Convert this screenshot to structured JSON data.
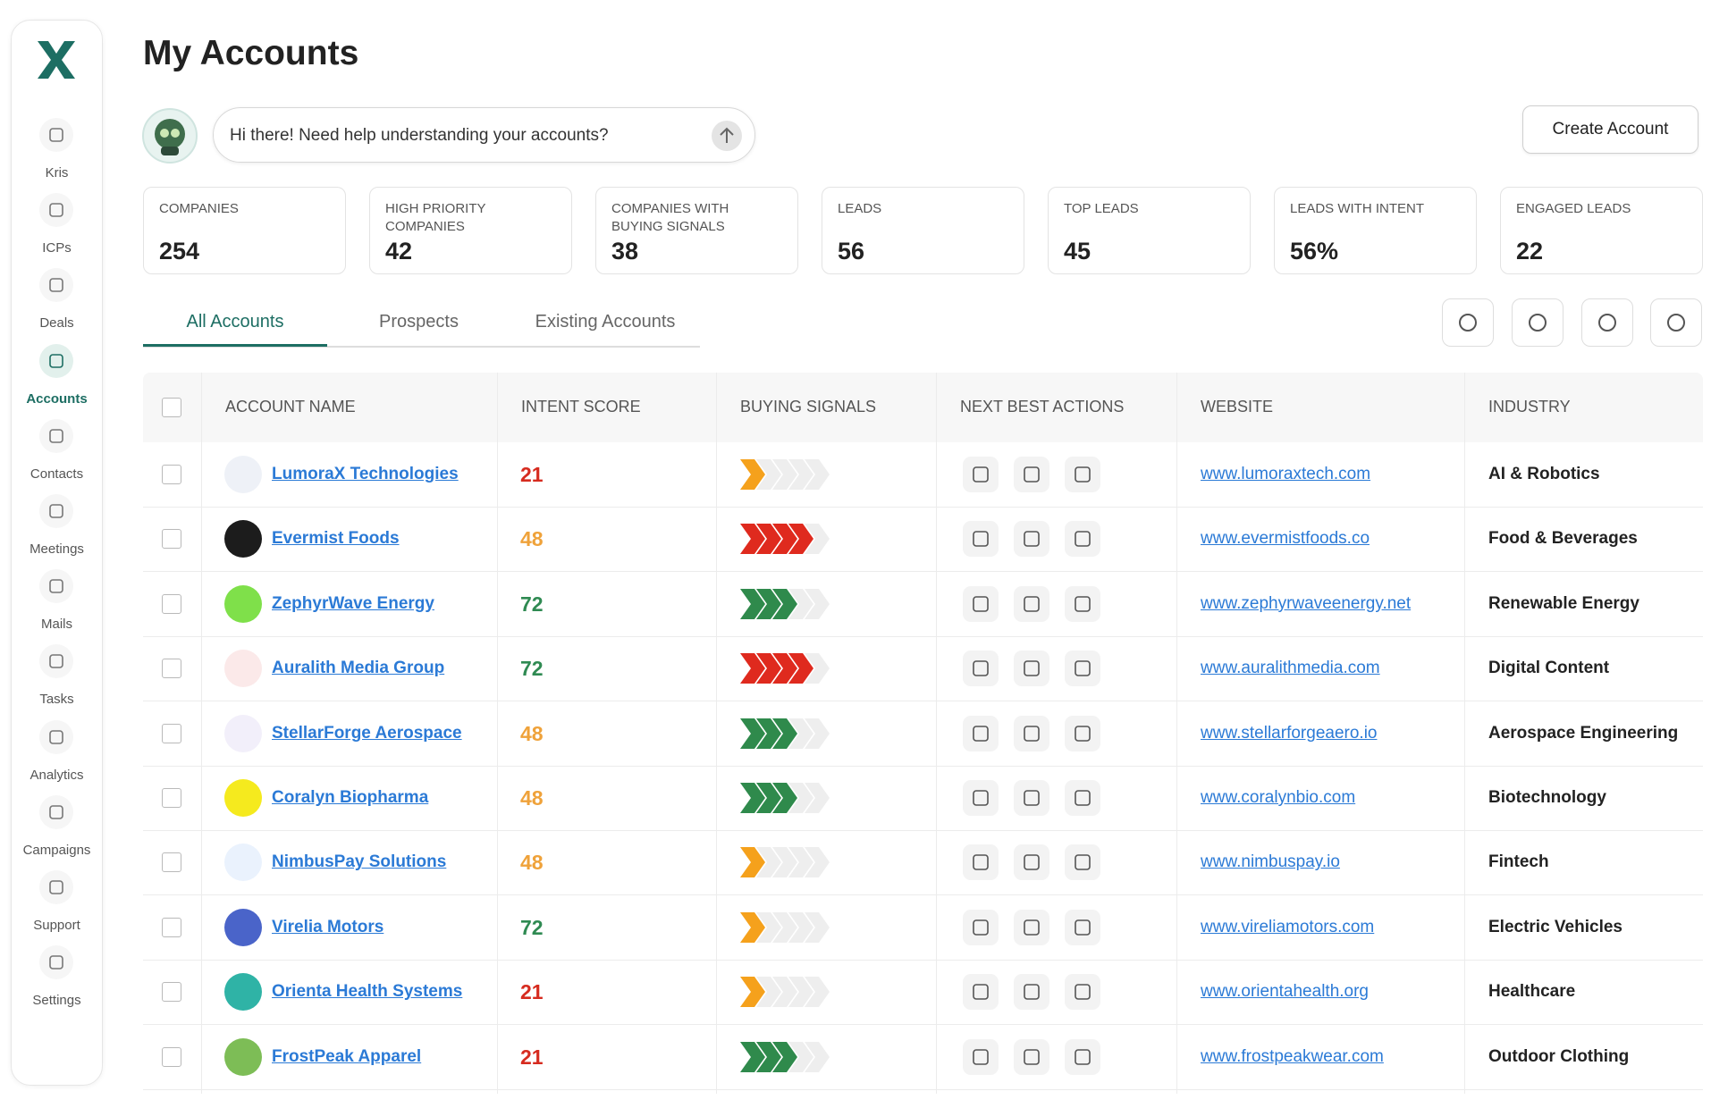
{
  "sidebar": {
    "items": [
      "Kris",
      "ICPs",
      "Deals",
      "Accounts",
      "Contacts",
      "Meetings",
      "Mails",
      "Tasks",
      "Analytics",
      "Campaigns",
      "Support",
      "Settings"
    ],
    "active_index": 3
  },
  "header": {
    "title": "My Accounts",
    "chat_placeholder": "Hi there! Need help understanding your accounts?",
    "create_button": "Create Account"
  },
  "stats": [
    {
      "label": "COMPANIES",
      "value": 254
    },
    {
      "label": "HIGH PRIORITY COMPANIES",
      "value": 42
    },
    {
      "label": "COMPANIES WITH BUYING SIGNALS",
      "value": 38
    },
    {
      "label": "LEADS",
      "value": 56
    },
    {
      "label": "TOP LEADS",
      "value": 45
    },
    {
      "label": "LEADS WITH INTENT",
      "value": "56%"
    },
    {
      "label": "ENGAGED LEADS",
      "value": 22
    }
  ],
  "tabs": {
    "items": [
      "All Accounts",
      "Prospects",
      "Existing Accounts"
    ],
    "active_index": 0
  },
  "table": {
    "columns": [
      "ACCOUNT NAME",
      "INTENT SCORE",
      "BUYING SIGNALS",
      "NEXT BEST ACTIONS",
      "WEBSITE",
      "INDUSTRY"
    ],
    "rows": [
      {
        "name": "LumoraX Technologies",
        "intent_score": 21,
        "score_color": "#d62b1f",
        "buying_signals": 1,
        "signal_color": "#f5a11c",
        "website": "www.lumoraxtech.com",
        "industry": "AI & Robotics",
        "logo_color": "#eef1f7"
      },
      {
        "name": "Evermist Foods",
        "intent_score": 48,
        "score_color": "#efa23a",
        "buying_signals": 4,
        "signal_color": "#df2a1e",
        "website": "www.evermistfoods.co",
        "industry": "Food & Beverages",
        "logo_color": "#1c1c1c"
      },
      {
        "name": "ZephyrWave Energy",
        "intent_score": 72,
        "score_color": "#2f8a52",
        "buying_signals": 3,
        "signal_color": "#2f8a4c",
        "website": "www.zephyrwaveenergy.net",
        "industry": "Renewable Energy",
        "logo_color": "#7fe04a"
      },
      {
        "name": "Auralith Media Group",
        "intent_score": 72,
        "score_color": "#2f8a52",
        "buying_signals": 4,
        "signal_color": "#df2a1e",
        "website": "www.auralithmedia.com",
        "industry": "Digital Content",
        "logo_color": "#fbe9e9"
      },
      {
        "name": "StellarForge Aerospace",
        "intent_score": 48,
        "score_color": "#efa23a",
        "buying_signals": 3,
        "signal_color": "#2f8a4c",
        "website": "www.stellarforgeaero.io",
        "industry": "Aerospace Engineering",
        "logo_color": "#f2effa"
      },
      {
        "name": "Coralyn Biopharma",
        "intent_score": 48,
        "score_color": "#efa23a",
        "buying_signals": 3,
        "signal_color": "#2f8a4c",
        "website": "www.coralynbio.com",
        "industry": "Biotechnology",
        "logo_color": "#f5ea1e"
      },
      {
        "name": "NimbusPay Solutions",
        "intent_score": 48,
        "score_color": "#efa23a",
        "buying_signals": 1,
        "signal_color": "#f5a11c",
        "website": "www.nimbuspay.io",
        "industry": "Fintech",
        "logo_color": "#eaf2fd"
      },
      {
        "name": "Virelia Motors",
        "intent_score": 72,
        "score_color": "#2f8a52",
        "buying_signals": 1,
        "signal_color": "#f5a11c",
        "website": "www.vireliamotors.com",
        "industry": "Electric Vehicles",
        "logo_color": "#4a64c9"
      },
      {
        "name": "Orienta Health Systems",
        "intent_score": 21,
        "score_color": "#d62b1f",
        "buying_signals": 1,
        "signal_color": "#f5a11c",
        "website": "www.orientahealth.org",
        "industry": "Healthcare",
        "logo_color": "#2fb3a6"
      },
      {
        "name": "FrostPeak Apparel",
        "intent_score": 21,
        "score_color": "#d62b1f",
        "buying_signals": 3,
        "signal_color": "#2f8a4c",
        "website": "www.frostpeakwear.com",
        "industry": "Outdoor Clothing",
        "logo_color": "#7dbd56"
      }
    ]
  }
}
